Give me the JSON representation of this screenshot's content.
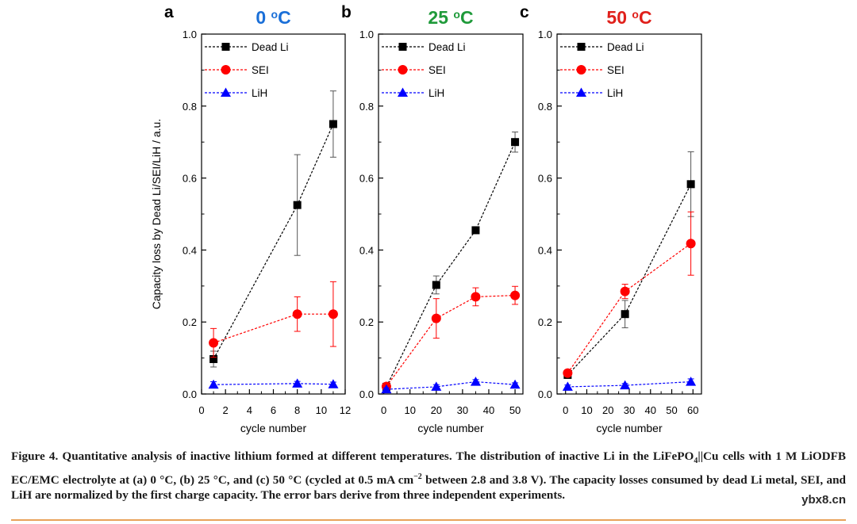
{
  "colors": {
    "dead_li": "#000000",
    "sei": "#ff0000",
    "lih": "#0000ff",
    "title_0C": "#1a6fd8",
    "title_25C": "#1f9a3a",
    "title_50C": "#e0201b"
  },
  "chart_data": [
    {
      "panel_letter": "a",
      "title": "0 °C",
      "title_color": "title_0C",
      "type": "line",
      "xlabel": "cycle number",
      "ylabel": "Capacity loss by Dead Li/SEI/LiH / a.u.",
      "xlim": [
        0,
        12
      ],
      "xticks": [
        0,
        2,
        4,
        6,
        8,
        10,
        12
      ],
      "xtick_labels": [
        "0",
        "2",
        "4",
        "6",
        "8",
        "10",
        "12"
      ],
      "ylim": [
        0,
        1.0
      ],
      "yticks": [
        0.0,
        0.2,
        0.4,
        0.6,
        0.8,
        1.0
      ],
      "ytick_labels": [
        "0.0",
        "0.2",
        "0.4",
        "0.6",
        "0.8",
        "1.0"
      ],
      "legend": [
        "Dead Li",
        "SEI",
        "LiH"
      ],
      "series": [
        {
          "name": "Dead Li",
          "marker": "square",
          "color": "dead_li",
          "x": [
            1,
            8,
            11
          ],
          "y": [
            0.097,
            0.525,
            0.75
          ],
          "err": [
            0.022,
            0.14,
            0.092
          ]
        },
        {
          "name": "SEI",
          "marker": "circle",
          "color": "sei",
          "x": [
            1,
            8,
            11
          ],
          "y": [
            0.142,
            0.222,
            0.222
          ],
          "err": [
            0.04,
            0.048,
            0.09
          ]
        },
        {
          "name": "LiH",
          "marker": "triangle",
          "color": "lih",
          "x": [
            1,
            8,
            11
          ],
          "y": [
            0.026,
            0.029,
            0.027
          ],
          "err": [
            0.008,
            0.006,
            0.006
          ]
        }
      ]
    },
    {
      "panel_letter": "b",
      "title": "25 °C",
      "title_color": "title_25C",
      "type": "line",
      "xlabel": "cycle number",
      "ylabel": "",
      "xlim": [
        -2,
        53
      ],
      "xticks": [
        0,
        10,
        20,
        30,
        40,
        50
      ],
      "xtick_labels": [
        "0",
        "10",
        "20",
        "30",
        "40",
        "50"
      ],
      "ylim": [
        0,
        1.0
      ],
      "yticks": [
        0.0,
        0.2,
        0.4,
        0.6,
        0.8,
        1.0
      ],
      "ytick_labels": [
        "0.0",
        "0.2",
        "0.4",
        "0.6",
        "0.8",
        "1.0"
      ],
      "legend": [
        "Dead Li",
        "SEI",
        "LiH"
      ],
      "series": [
        {
          "name": "Dead Li",
          "marker": "square",
          "color": "dead_li",
          "x": [
            1,
            20,
            35,
            50
          ],
          "y": [
            0.02,
            0.303,
            0.455,
            0.7
          ],
          "err": [
            0.004,
            0.025,
            0.0,
            0.028
          ]
        },
        {
          "name": "SEI",
          "marker": "circle",
          "color": "sei",
          "x": [
            1,
            20,
            35,
            50
          ],
          "y": [
            0.021,
            0.21,
            0.27,
            0.274
          ],
          "err": [
            0.004,
            0.055,
            0.025,
            0.025
          ]
        },
        {
          "name": "LiH",
          "marker": "triangle",
          "color": "lih",
          "x": [
            1,
            20,
            35,
            50
          ],
          "y": [
            0.013,
            0.02,
            0.034,
            0.026
          ],
          "err": [
            0.004,
            0.006,
            0.006,
            0.005
          ]
        }
      ]
    },
    {
      "panel_letter": "c",
      "title": "50 °C",
      "title_color": "title_50C",
      "type": "line",
      "xlabel": "cycle number",
      "ylabel": "",
      "xlim": [
        -4,
        64
      ],
      "xticks": [
        0,
        10,
        20,
        30,
        40,
        50,
        60
      ],
      "xtick_labels": [
        "0",
        "10",
        "20",
        "30",
        "40",
        "50",
        "60"
      ],
      "ylim": [
        0,
        1.0
      ],
      "yticks": [
        0.0,
        0.2,
        0.4,
        0.6,
        0.8,
        1.0
      ],
      "ytick_labels": [
        "0.0",
        "0.2",
        "0.4",
        "0.6",
        "0.8",
        "1.0"
      ],
      "legend": [
        "Dead Li",
        "SEI",
        "LiH"
      ],
      "series": [
        {
          "name": "Dead Li",
          "marker": "square",
          "color": "dead_li",
          "x": [
            1,
            28,
            59
          ],
          "y": [
            0.053,
            0.222,
            0.583
          ],
          "err": [
            0.008,
            0.038,
            0.09
          ]
        },
        {
          "name": "SEI",
          "marker": "circle",
          "color": "sei",
          "x": [
            1,
            28,
            59
          ],
          "y": [
            0.058,
            0.285,
            0.418
          ],
          "err": [
            0.008,
            0.02,
            0.088
          ]
        },
        {
          "name": "LiH",
          "marker": "triangle",
          "color": "lih",
          "x": [
            1,
            28,
            59
          ],
          "y": [
            0.02,
            0.024,
            0.034
          ],
          "err": [
            0.005,
            0.005,
            0.008
          ]
        }
      ]
    }
  ],
  "caption": {
    "label": "Figure 4.",
    "part1": "Quantitative analysis of inactive lithium formed at different temperatures. The distribution of inactive Li in the LiFePO",
    "sub1": "4",
    "part2": "||Cu cells with 1 M LiODFB EC/EMC electrolyte at (a) 0 °C, (b) 25 °C, and (c) 50 °C (cycled at 0.5 mA cm",
    "sup1": "−2",
    "part3": " between 2.8 and 3.8 V). The capacity losses consumed by dead Li metal, SEI, and LiH are normalized by the first charge capacity. The error bars derive from three independent experiments."
  },
  "watermark": "ybx8.cn"
}
